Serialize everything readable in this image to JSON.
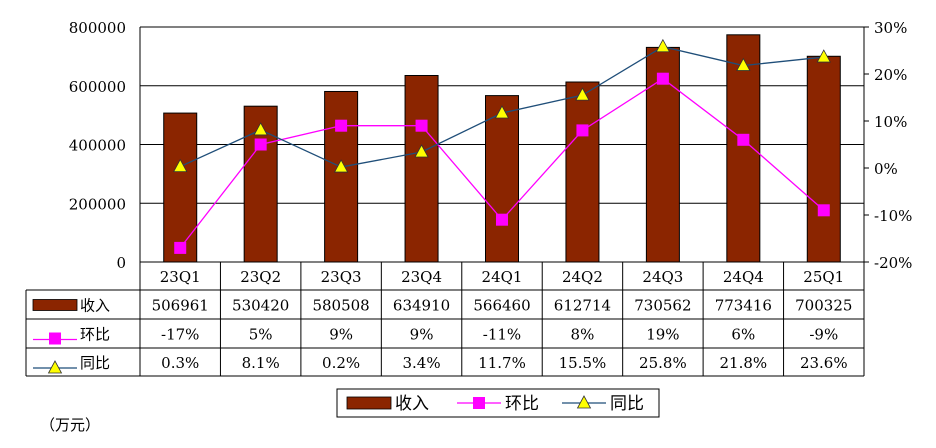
{
  "chart_data": {
    "type": "bar",
    "categories": [
      "23Q1",
      "23Q2",
      "23Q3",
      "23Q4",
      "24Q1",
      "24Q2",
      "24Q3",
      "24Q4",
      "25Q1"
    ],
    "series": [
      {
        "name": "收入",
        "type": "bar",
        "axis": "left",
        "color": "#8B2500",
        "values": [
          506961,
          530420,
          580508,
          634910,
          566460,
          612714,
          730562,
          773416,
          700325
        ]
      },
      {
        "name": "环比",
        "type": "line",
        "axis": "right",
        "color": "#FF00FF",
        "marker": "square",
        "values": [
          -17,
          5,
          9,
          9,
          -11,
          8,
          19,
          6,
          -9
        ]
      },
      {
        "name": "同比",
        "type": "line",
        "axis": "right",
        "color": "#1F4E79",
        "marker": "triangle",
        "marker_color": "#FFFF00",
        "values": [
          0.3,
          8.1,
          0.2,
          3.4,
          11.7,
          15.5,
          25.8,
          21.8,
          23.6
        ]
      }
    ],
    "table": {
      "rows": [
        {
          "label": "收入",
          "cells": [
            "506961",
            "530420",
            "580508",
            "634910",
            "566460",
            "612714",
            "730562",
            "773416",
            "700325"
          ]
        },
        {
          "label": "环比",
          "cells": [
            "-17%",
            "5%",
            "9%",
            "9%",
            "-11%",
            "8%",
            "19%",
            "6%",
            "-9%"
          ]
        },
        {
          "label": "同比",
          "cells": [
            "0.3%",
            "8.1%",
            "0.2%",
            "3.4%",
            "11.7%",
            "15.5%",
            "25.8%",
            "21.8%",
            "23.6%"
          ]
        }
      ]
    },
    "left_axis": {
      "min": 0,
      "max": 800000,
      "ticks": [
        "0",
        "200000",
        "400000",
        "600000",
        "800000"
      ]
    },
    "right_axis": {
      "min": -20,
      "max": 30,
      "ticks": [
        "-20%",
        "-10%",
        "0%",
        "10%",
        "20%",
        "30%"
      ]
    },
    "legend": {
      "position": "bottom",
      "entries": [
        "收入",
        "环比",
        "同比"
      ]
    },
    "grid": true,
    "unit_note": "（万元）"
  }
}
